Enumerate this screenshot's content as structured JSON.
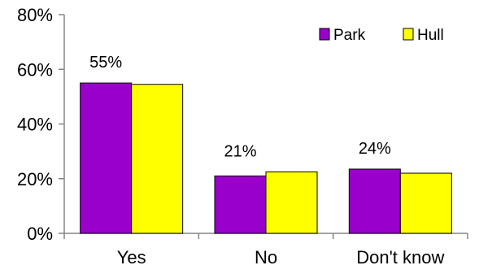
{
  "chart_data": {
    "type": "bar",
    "categories": [
      "Yes",
      "No",
      "Don't know"
    ],
    "series": [
      {
        "name": "Park",
        "values": [
          55,
          21,
          23.5
        ],
        "color": "#9900CC"
      },
      {
        "name": "Hull",
        "values": [
          54.5,
          22.5,
          22
        ],
        "color": "#FFFF00"
      }
    ],
    "data_labels": [
      "55%",
      "21%",
      "24%"
    ],
    "ylim": [
      0,
      80
    ],
    "y_ticks": [
      "0%",
      "20%",
      "40%",
      "60%",
      "80%"
    ],
    "y_tick_values": [
      0,
      20,
      40,
      60,
      80
    ],
    "legend_position": "top-right",
    "grid": false,
    "title": "",
    "xlabel": "",
    "ylabel": ""
  }
}
